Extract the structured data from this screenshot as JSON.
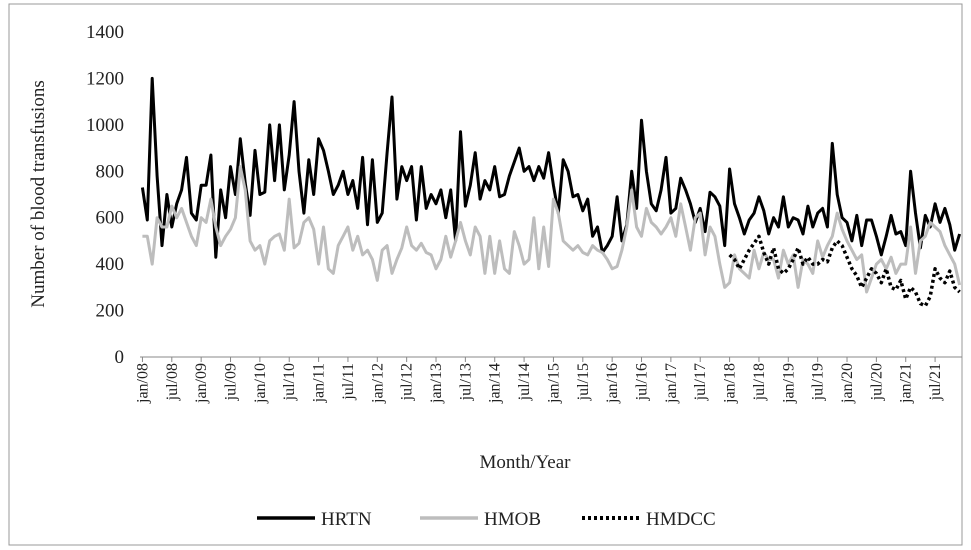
{
  "chart_data": {
    "type": "line",
    "y_label": "Number of blood transfusions",
    "x_label": "Month/Year",
    "categories": [
      "jan/08",
      null,
      null,
      null,
      null,
      null,
      "jul/08",
      null,
      null,
      null,
      null,
      null,
      "jan/09",
      null,
      null,
      null,
      null,
      null,
      "jul/09",
      null,
      null,
      null,
      null,
      null,
      "jan/10",
      null,
      null,
      null,
      null,
      null,
      "jul/10",
      null,
      null,
      null,
      null,
      null,
      "jan/11",
      null,
      null,
      null,
      null,
      null,
      "jul/11",
      null,
      null,
      null,
      null,
      null,
      "jan/12",
      null,
      null,
      null,
      null,
      null,
      "jul/12",
      null,
      null,
      null,
      null,
      null,
      "jan/13",
      null,
      null,
      null,
      null,
      null,
      "jul/13",
      null,
      null,
      null,
      null,
      null,
      "jan/14",
      null,
      null,
      null,
      null,
      null,
      "jul/14",
      null,
      null,
      null,
      null,
      null,
      "jan/15",
      null,
      null,
      null,
      null,
      null,
      "jul/15",
      null,
      null,
      null,
      null,
      null,
      "jan/16",
      null,
      null,
      null,
      null,
      null,
      "jul/16",
      null,
      null,
      null,
      null,
      null,
      "jan/17",
      null,
      null,
      null,
      null,
      null,
      "jul/17",
      null,
      null,
      null,
      null,
      null,
      "jan/18",
      null,
      null,
      null,
      null,
      null,
      "jul/18",
      null,
      null,
      null,
      null,
      null,
      "jan/19",
      null,
      null,
      null,
      null,
      null,
      "jul/19",
      null,
      null,
      null,
      null,
      null,
      "jan/20",
      null,
      null,
      null,
      null,
      null,
      "jul/20",
      null,
      null,
      null,
      null,
      null,
      "jan/21",
      null,
      null,
      null,
      null,
      null,
      "jul/21",
      null,
      null,
      null,
      null,
      null
    ],
    "series": [
      {
        "name": "HRTN",
        "color": "#000000",
        "dash": "solid",
        "values": [
          730,
          590,
          1200,
          780,
          480,
          700,
          560,
          660,
          720,
          860,
          620,
          590,
          740,
          740,
          870,
          430,
          720,
          600,
          820,
          700,
          940,
          750,
          610,
          890,
          700,
          710,
          1000,
          760,
          1000,
          720,
          870,
          1100,
          800,
          620,
          850,
          700,
          940,
          890,
          800,
          700,
          740,
          800,
          700,
          760,
          640,
          860,
          570,
          850,
          580,
          620,
          880,
          1120,
          680,
          820,
          760,
          820,
          590,
          820,
          640,
          700,
          660,
          720,
          600,
          720,
          500,
          970,
          650,
          740,
          880,
          680,
          760,
          720,
          820,
          690,
          700,
          780,
          840,
          900,
          800,
          820,
          760,
          820,
          770,
          880,
          740,
          620,
          850,
          800,
          690,
          700,
          630,
          680,
          520,
          560,
          450,
          480,
          520,
          690,
          500,
          570,
          800,
          640,
          1020,
          800,
          660,
          630,
          720,
          860,
          620,
          640,
          770,
          720,
          660,
          580,
          640,
          540,
          710,
          690,
          650,
          480,
          810,
          660,
          600,
          530,
          590,
          620,
          690,
          630,
          530,
          600,
          560,
          690,
          560,
          600,
          590,
          530,
          650,
          560,
          620,
          640,
          560,
          920,
          700,
          600,
          580,
          500,
          610,
          480,
          590,
          590,
          520,
          440,
          520,
          610,
          530,
          540,
          480,
          800,
          620,
          470,
          610,
          560,
          660,
          580,
          640,
          570,
          460,
          530
        ]
      },
      {
        "name": "HMOB",
        "color": "#bdbdbd",
        "dash": "solid",
        "values": [
          520,
          520,
          400,
          600,
          560,
          560,
          650,
          600,
          640,
          580,
          520,
          480,
          600,
          580,
          680,
          560,
          480,
          520,
          550,
          600,
          820,
          720,
          500,
          460,
          480,
          400,
          500,
          520,
          530,
          460,
          680,
          470,
          490,
          580,
          600,
          550,
          400,
          560,
          380,
          360,
          480,
          520,
          560,
          460,
          520,
          440,
          460,
          420,
          330,
          460,
          480,
          360,
          420,
          470,
          560,
          480,
          460,
          490,
          450,
          440,
          380,
          420,
          520,
          430,
          500,
          580,
          500,
          440,
          560,
          520,
          360,
          520,
          360,
          500,
          380,
          360,
          540,
          480,
          400,
          420,
          600,
          380,
          560,
          390,
          680,
          620,
          500,
          480,
          460,
          480,
          450,
          440,
          480,
          460,
          450,
          420,
          380,
          390,
          460,
          560,
          720,
          560,
          520,
          640,
          580,
          560,
          530,
          560,
          600,
          520,
          660,
          560,
          460,
          600,
          620,
          440,
          560,
          520,
          400,
          300,
          320,
          440,
          380,
          360,
          340,
          460,
          380,
          450,
          420,
          420,
          340,
          460,
          400,
          440,
          300,
          420,
          400,
          360,
          500,
          430,
          480,
          520,
          620,
          550,
          500,
          460,
          420,
          440,
          280,
          340,
          400,
          420,
          380,
          430,
          360,
          400,
          400,
          560,
          360,
          500,
          520,
          580,
          560,
          540,
          480,
          440,
          400,
          310
        ]
      },
      {
        "name": "HMDCC",
        "color": "#000000",
        "dash": "dotted",
        "values": [
          null,
          null,
          null,
          null,
          null,
          null,
          null,
          null,
          null,
          null,
          null,
          null,
          null,
          null,
          null,
          null,
          null,
          null,
          null,
          null,
          null,
          null,
          null,
          null,
          null,
          null,
          null,
          null,
          null,
          null,
          null,
          null,
          null,
          null,
          null,
          null,
          null,
          null,
          null,
          null,
          null,
          null,
          null,
          null,
          null,
          null,
          null,
          null,
          null,
          null,
          null,
          null,
          null,
          null,
          null,
          null,
          null,
          null,
          null,
          null,
          null,
          null,
          null,
          null,
          null,
          null,
          null,
          null,
          null,
          null,
          null,
          null,
          null,
          null,
          null,
          null,
          null,
          null,
          null,
          null,
          null,
          null,
          null,
          null,
          null,
          null,
          null,
          null,
          null,
          null,
          null,
          null,
          null,
          null,
          null,
          null,
          null,
          null,
          null,
          null,
          null,
          null,
          null,
          null,
          null,
          null,
          null,
          null,
          null,
          null,
          null,
          null,
          null,
          null,
          null,
          null,
          null,
          null,
          null,
          null,
          440,
          420,
          380,
          420,
          460,
          490,
          520,
          450,
          400,
          470,
          380,
          360,
          380,
          420,
          470,
          400,
          430,
          400,
          400,
          420,
          410,
          470,
          500,
          480,
          430,
          380,
          350,
          300,
          340,
          380,
          360,
          320,
          380,
          300,
          290,
          330,
          250,
          300,
          280,
          230,
          220,
          260,
          380,
          340,
          320,
          370,
          300,
          280
        ]
      }
    ],
    "ylim": [
      0,
      1400
    ],
    "yticks": [
      0,
      200,
      400,
      600,
      800,
      1000,
      1200,
      1400
    ],
    "grid": false,
    "legend": "bottom"
  }
}
